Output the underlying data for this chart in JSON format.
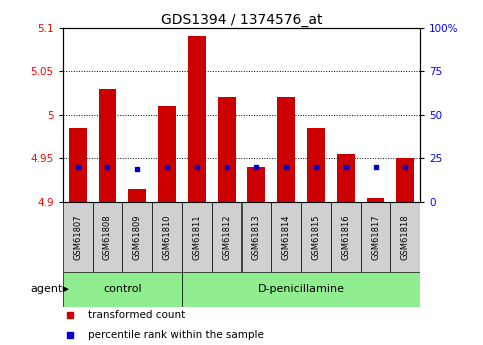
{
  "title": "GDS1394 / 1374576_at",
  "samples": [
    "GSM61807",
    "GSM61808",
    "GSM61809",
    "GSM61810",
    "GSM61811",
    "GSM61812",
    "GSM61813",
    "GSM61814",
    "GSM61815",
    "GSM61816",
    "GSM61817",
    "GSM61818"
  ],
  "transformed_count": [
    4.985,
    5.03,
    4.915,
    5.01,
    5.09,
    5.02,
    4.94,
    5.02,
    4.985,
    4.955,
    4.905,
    4.95
  ],
  "pct_rank_right": [
    20,
    20,
    19,
    20,
    20,
    20,
    20,
    20,
    20,
    20,
    20,
    20
  ],
  "ylim_left": [
    4.9,
    5.1
  ],
  "ylim_right": [
    0,
    100
  ],
  "yticks_left": [
    4.9,
    4.95,
    5.0,
    5.05,
    5.1
  ],
  "yticks_right": [
    0,
    25,
    50,
    75,
    100
  ],
  "ytick_labels_left": [
    "4.9",
    "4.95",
    "5",
    "5.05",
    "5.1"
  ],
  "ytick_labels_right": [
    "0",
    "25",
    "50",
    "75",
    "100%"
  ],
  "bar_color_red": "#cc0000",
  "bar_color_blue": "#0000cc",
  "bar_bottom": 4.9,
  "groups": [
    {
      "label": "control",
      "start": 0,
      "end": 4
    },
    {
      "label": "D-penicillamine",
      "start": 4,
      "end": 12
    }
  ],
  "group_color": "#90ee90",
  "sample_bg_color": "#d0d0d0",
  "legend_items": [
    {
      "color": "#cc0000",
      "label": "transformed count"
    },
    {
      "color": "#0000cc",
      "label": "percentile rank within the sample"
    }
  ],
  "title_fontsize": 10,
  "tick_fontsize": 7.5,
  "bar_width": 0.6,
  "hgrid_vals": [
    4.95,
    5.0,
    5.05
  ]
}
